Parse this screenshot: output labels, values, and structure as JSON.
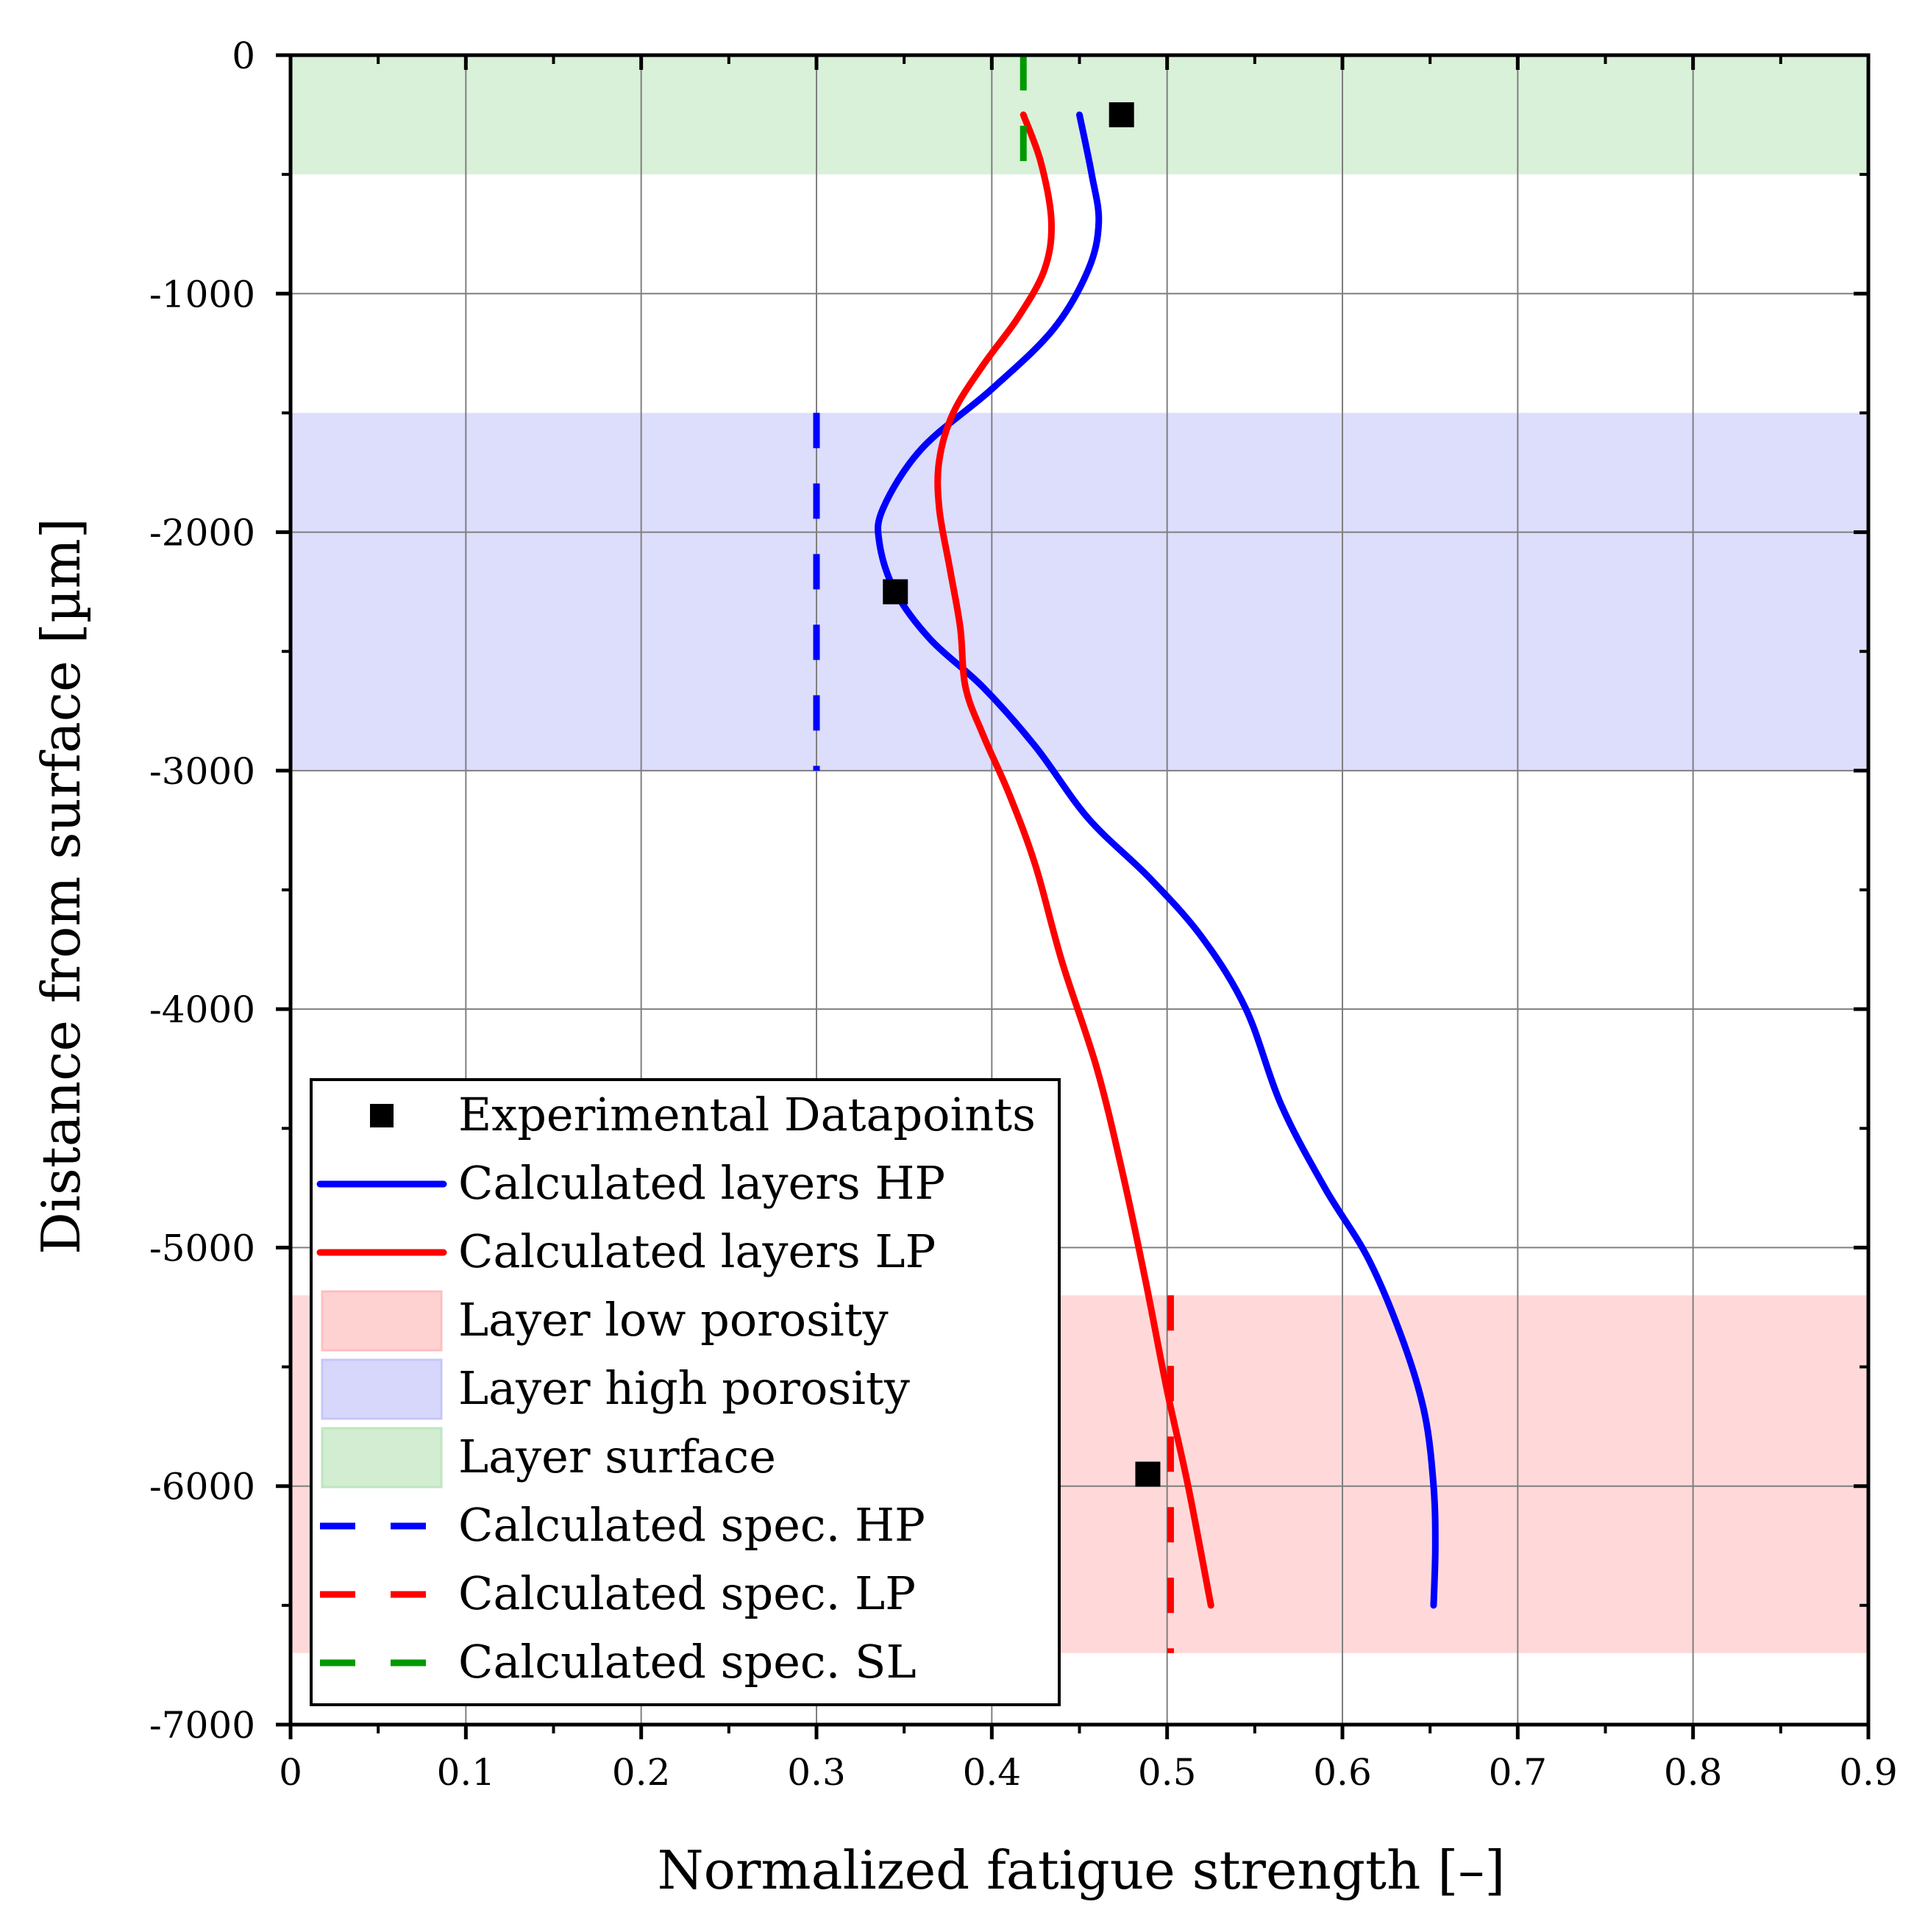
{
  "chart_data": {
    "type": "line",
    "xlabel": "Normalized fatigue strength [–]",
    "ylabel": "Distance from surface [µm]",
    "xlim": [
      0,
      0.9
    ],
    "ylim": [
      -7000,
      0
    ],
    "xticks": [
      0,
      0.1,
      0.2,
      0.3,
      0.4,
      0.5,
      0.6,
      0.7,
      0.8,
      0.9
    ],
    "xtick_labels": [
      "0",
      "0.1",
      "0.2",
      "0.3",
      "0.4",
      "0.5",
      "0.6",
      "0.7",
      "0.8",
      "0.9"
    ],
    "yticks": [
      0,
      -1000,
      -2000,
      -3000,
      -4000,
      -5000,
      -6000,
      -7000
    ],
    "ytick_labels": [
      "0",
      "-1000",
      "-2000",
      "-3000",
      "-4000",
      "-5000",
      "-6000",
      "-7000"
    ],
    "grid": true,
    "legend_position": "bottom-left",
    "bands": [
      {
        "name": "Layer surface",
        "y_from": 0,
        "y_to": -500,
        "color": "#bfe6bf"
      },
      {
        "name": "Layer high porosity",
        "y_from": -1500,
        "y_to": -3000,
        "color": "#c6c6fa"
      },
      {
        "name": "Layer low porosity",
        "y_from": -5200,
        "y_to": -6700,
        "color": "#ffbfbf"
      }
    ],
    "experimental": {
      "name": "Experimental Datapoints",
      "points": [
        {
          "x": 0.474,
          "y": -250
        },
        {
          "x": 0.345,
          "y": -2250
        },
        {
          "x": 0.489,
          "y": -5950
        }
      ]
    },
    "series": [
      {
        "name": "Calculated layers HP",
        "color": "#0000ff",
        "style": "solid",
        "points": [
          [
            0.45,
            -250
          ],
          [
            0.457,
            -500
          ],
          [
            0.461,
            -700
          ],
          [
            0.455,
            -900
          ],
          [
            0.435,
            -1150
          ],
          [
            0.4,
            -1400
          ],
          [
            0.36,
            -1650
          ],
          [
            0.338,
            -1900
          ],
          [
            0.336,
            -2050
          ],
          [
            0.345,
            -2250
          ],
          [
            0.365,
            -2450
          ],
          [
            0.395,
            -2650
          ],
          [
            0.425,
            -2900
          ],
          [
            0.455,
            -3200
          ],
          [
            0.49,
            -3450
          ],
          [
            0.52,
            -3700
          ],
          [
            0.545,
            -4000
          ],
          [
            0.565,
            -4400
          ],
          [
            0.59,
            -4750
          ],
          [
            0.615,
            -5050
          ],
          [
            0.635,
            -5400
          ],
          [
            0.647,
            -5700
          ],
          [
            0.652,
            -6000
          ],
          [
            0.653,
            -6250
          ],
          [
            0.652,
            -6500
          ]
        ]
      },
      {
        "name": "Calculated layers LP",
        "color": "#ff0000",
        "style": "solid",
        "points": [
          [
            0.418,
            -250
          ],
          [
            0.428,
            -450
          ],
          [
            0.434,
            -700
          ],
          [
            0.43,
            -900
          ],
          [
            0.415,
            -1100
          ],
          [
            0.395,
            -1300
          ],
          [
            0.378,
            -1500
          ],
          [
            0.37,
            -1700
          ],
          [
            0.37,
            -1900
          ],
          [
            0.376,
            -2150
          ],
          [
            0.382,
            -2400
          ],
          [
            0.385,
            -2650
          ],
          [
            0.395,
            -2850
          ],
          [
            0.41,
            -3100
          ],
          [
            0.425,
            -3400
          ],
          [
            0.44,
            -3800
          ],
          [
            0.46,
            -4250
          ],
          [
            0.475,
            -4700
          ],
          [
            0.488,
            -5150
          ],
          [
            0.5,
            -5600
          ],
          [
            0.512,
            -6000
          ],
          [
            0.525,
            -6500
          ]
        ]
      },
      {
        "name": "Calculated spec. HP",
        "color": "#0000ff",
        "style": "dashed",
        "points": [
          [
            0.3,
            -1500
          ],
          [
            0.3,
            -3000
          ]
        ]
      },
      {
        "name": "Calculated spec. LP",
        "color": "#ff0000",
        "style": "dashed",
        "points": [
          [
            0.502,
            -5200
          ],
          [
            0.502,
            -6700
          ]
        ]
      },
      {
        "name": "Calculated spec. SL",
        "color": "#009900",
        "style": "dashed",
        "points": [
          [
            0.418,
            0
          ],
          [
            0.418,
            -500
          ]
        ]
      }
    ],
    "legend": [
      {
        "label": "Experimental Datapoints",
        "kind": "marker",
        "color": "#000000"
      },
      {
        "label": "Calculated layers HP",
        "kind": "solid",
        "color": "#0000ff"
      },
      {
        "label": "Calculated layers LP",
        "kind": "solid",
        "color": "#ff0000"
      },
      {
        "label": "Layer low porosity",
        "kind": "patch",
        "color": "#ffbfbf"
      },
      {
        "label": "Layer high porosity",
        "kind": "patch",
        "color": "#c6c6fa"
      },
      {
        "label": "Layer surface",
        "kind": "patch",
        "color": "#bfe6bf"
      },
      {
        "label": "Calculated spec. HP",
        "kind": "dashed",
        "color": "#0000ff"
      },
      {
        "label": "Calculated spec. LP",
        "kind": "dashed",
        "color": "#ff0000"
      },
      {
        "label": "Calculated spec. SL",
        "kind": "dashed",
        "color": "#009900"
      }
    ]
  }
}
